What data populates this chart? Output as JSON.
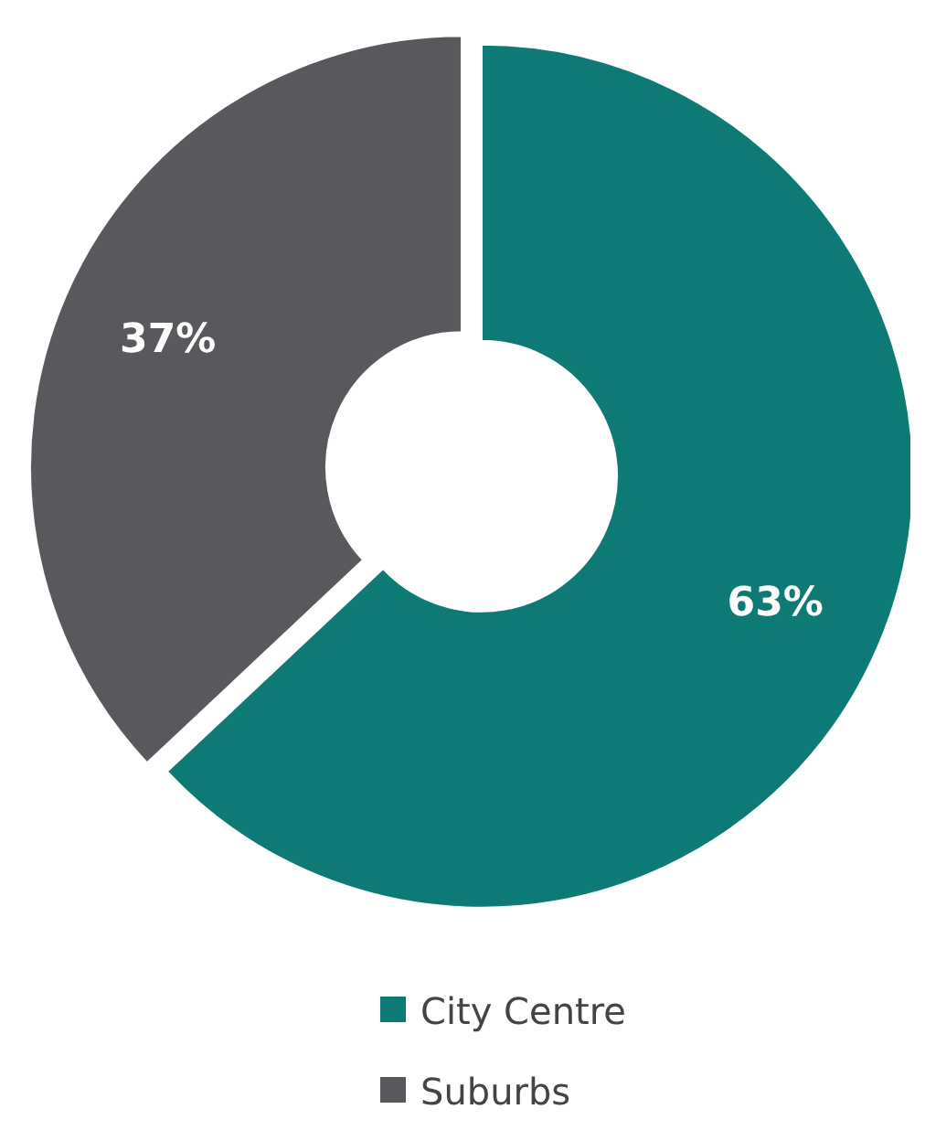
{
  "chart_data": {
    "type": "donut",
    "categories": [
      "City Centre",
      "Suburbs"
    ],
    "values": [
      63,
      37
    ],
    "colors": [
      "#0e7a75",
      "#59585d"
    ],
    "value_labels": [
      "63%",
      "37%"
    ],
    "legend": "bottom"
  }
}
